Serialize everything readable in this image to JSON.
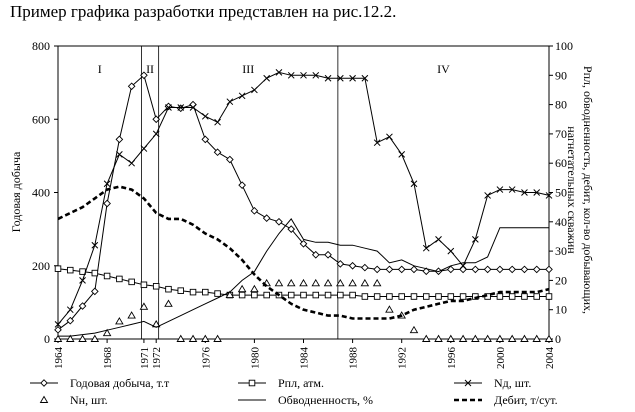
{
  "caption": "Пример графика разработки представлен на рис.12.2.",
  "chart_data": {
    "type": "line",
    "title": "",
    "ylabel_left": "Годовая добыча",
    "ylabel_right": "Рпл, обводненность, дебит, кол-во добывающих, нагнетательных скважин",
    "ylim_left": [
      0,
      800
    ],
    "ylim_right": [
      0,
      100
    ],
    "yticks_left": [
      "0",
      "200",
      "400",
      "600",
      "800"
    ],
    "yticks_right": [
      "0",
      "10",
      "20",
      "30",
      "40",
      "50",
      "60",
      "70",
      "80",
      "90",
      "100"
    ],
    "xlim": [
      1964,
      2004
    ],
    "xticks": [
      "1964",
      "1968",
      "1972",
      "1976",
      "1980",
      "1984",
      "1988",
      "1992",
      "1996",
      "2000",
      "2004"
    ],
    "extra_xticks": [
      "1971"
    ],
    "stages": [
      {
        "label": "I",
        "from": 1964,
        "to": 1970.8
      },
      {
        "label": "II",
        "from": 1970.8,
        "to": 1972.2
      },
      {
        "label": "III",
        "from": 1972.2,
        "to": 1986.8
      },
      {
        "label": "IV",
        "from": 1986.8,
        "to": 2004
      }
    ],
    "grid": false,
    "legend_position": "bottom",
    "series": [
      {
        "name": "Годовая добыча, т.т",
        "axis": "left",
        "marker": "diamond",
        "style": "solid",
        "x": [
          1964,
          1965,
          1966,
          1967,
          1968,
          1969,
          1970,
          1971,
          1972,
          1973,
          1974,
          1975,
          1976,
          1977,
          1978,
          1979,
          1980,
          1981,
          1982,
          1983,
          1984,
          1985,
          1986,
          1987,
          1988,
          1989,
          1990,
          1991,
          1992,
          1993,
          1994,
          1995,
          1996,
          1997,
          1998,
          1999,
          2000,
          2001,
          2002,
          2003,
          2004
        ],
        "y": [
          25,
          50,
          90,
          130,
          370,
          545,
          690,
          720,
          600,
          635,
          630,
          640,
          545,
          510,
          490,
          420,
          350,
          330,
          320,
          300,
          260,
          230,
          230,
          205,
          200,
          195,
          190,
          190,
          190,
          190,
          185,
          185,
          190,
          190,
          190,
          190,
          190,
          190,
          190,
          190,
          190
        ]
      },
      {
        "name": "Рпл, атм.",
        "axis": "right",
        "marker": "square",
        "style": "solid",
        "x": [
          1964,
          1965,
          1966,
          1967,
          1968,
          1969,
          1970,
          1971,
          1972,
          1973,
          1974,
          1975,
          1976,
          1977,
          1978,
          1979,
          1980,
          1981,
          1982,
          1983,
          1984,
          1985,
          1986,
          1987,
          1988,
          1989,
          1990,
          1991,
          1992,
          1993,
          1994,
          1995,
          1996,
          1997,
          1998,
          1999,
          2000,
          2001,
          2002,
          2003,
          2004
        ],
        "y": [
          24,
          23.5,
          23,
          22.5,
          21.5,
          20.5,
          19.5,
          18.5,
          18,
          17,
          16.5,
          16,
          16,
          15.5,
          15,
          15,
          15,
          15,
          15,
          15,
          15,
          15,
          15,
          15,
          15,
          14.5,
          14.5,
          14.5,
          14.5,
          14.5,
          14.5,
          14.5,
          14.5,
          14.5,
          14.5,
          14.5,
          14.5,
          14.5,
          14.5,
          14.5,
          14.5
        ]
      },
      {
        "name": "Nд, шт.",
        "axis": "right",
        "marker": "x",
        "style": "solid",
        "x": [
          1964,
          1965,
          1966,
          1967,
          1968,
          1969,
          1970,
          1971,
          1972,
          1973,
          1974,
          1975,
          1976,
          1977,
          1978,
          1979,
          1980,
          1981,
          1982,
          1983,
          1984,
          1985,
          1986,
          1987,
          1988,
          1989,
          1990,
          1991,
          1992,
          1993,
          1994,
          1995,
          1996,
          1997,
          1998,
          1999,
          2000,
          2001,
          2002,
          2003,
          2004
        ],
        "y": [
          5,
          10,
          20,
          32,
          53,
          63,
          60,
          65,
          70,
          79,
          79,
          79,
          76,
          74,
          81,
          83,
          85,
          89,
          91,
          90,
          90,
          90,
          89,
          89,
          89,
          89,
          67,
          69,
          63,
          53,
          31,
          34,
          30,
          25,
          34,
          49,
          51,
          51,
          50,
          50,
          49
        ]
      },
      {
        "name": "Nн, шт.",
        "axis": "right",
        "marker": "triangle",
        "style": "none",
        "x": [
          1964,
          1965,
          1966,
          1967,
          1968,
          1969,
          1970,
          1971,
          1972,
          1973,
          1974,
          1975,
          1976,
          1977,
          1978,
          1979,
          1980,
          1981,
          1982,
          1983,
          1984,
          1985,
          1986,
          1987,
          1988,
          1989,
          1990,
          1991,
          1992,
          1993,
          1994,
          1995,
          1996,
          1997,
          1998,
          1999,
          2000,
          2001,
          2002,
          2003,
          2004
        ],
        "y": [
          0,
          0,
          0,
          0,
          2,
          6,
          8,
          11,
          5,
          12,
          0,
          0,
          0,
          0,
          15,
          17,
          17,
          19,
          19,
          19,
          19,
          19,
          19,
          19,
          19,
          19,
          19,
          10,
          8,
          3,
          0,
          0,
          0,
          0,
          0,
          0,
          0,
          0,
          0,
          0,
          0
        ]
      },
      {
        "name": "Обводненность, %",
        "axis": "right",
        "marker": "none",
        "style": "solid",
        "x": [
          1964,
          1965,
          1966,
          1967,
          1968,
          1969,
          1970,
          1971,
          1972,
          1973,
          1974,
          1975,
          1976,
          1977,
          1978,
          1979,
          1980,
          1981,
          1982,
          1983,
          1984,
          1985,
          1986,
          1987,
          1988,
          1989,
          1990,
          1991,
          1992,
          1993,
          1994,
          1995,
          1996,
          1997,
          1998,
          1999,
          2000,
          2001,
          2002,
          2003,
          2004
        ],
        "y": [
          1,
          1,
          1.5,
          2,
          3,
          4,
          5,
          6,
          4,
          6,
          8,
          10,
          12,
          14,
          16,
          20,
          23,
          30,
          36,
          41,
          34,
          33,
          33,
          32,
          32,
          31,
          30,
          26,
          27,
          25,
          24,
          23,
          25,
          26,
          26,
          28,
          38,
          38,
          38,
          38,
          38
        ]
      },
      {
        "name": "Дебит, т/сут.",
        "axis": "right",
        "marker": "none",
        "style": "dashed",
        "x": [
          1964,
          1965,
          1966,
          1967,
          1968,
          1969,
          1970,
          1971,
          1972,
          1973,
          1974,
          1975,
          1976,
          1977,
          1978,
          1979,
          1980,
          1981,
          1982,
          1983,
          1984,
          1985,
          1986,
          1987,
          1988,
          1989,
          1990,
          1991,
          1992,
          1993,
          1994,
          1995,
          1996,
          1997,
          1998,
          1999,
          2000,
          2001,
          2002,
          2003,
          2004
        ],
        "y": [
          41,
          43,
          45,
          48,
          51,
          52,
          51,
          48,
          43,
          41,
          41,
          39,
          36,
          34,
          31,
          27,
          22,
          18,
          15,
          12,
          10,
          9,
          8,
          8,
          7,
          7,
          7,
          7,
          8,
          10,
          11,
          12,
          13,
          13,
          14,
          15,
          16,
          16,
          16,
          16,
          17
        ]
      }
    ],
    "legend": [
      {
        "label": "Годовая добыча, т.т",
        "marker": "diamond",
        "style": "solid"
      },
      {
        "label": "Рпл, атм.",
        "marker": "square",
        "style": "solid"
      },
      {
        "label": "Nд, шт.",
        "marker": "x",
        "style": "solid"
      },
      {
        "label": "Nн, шт.",
        "marker": "triangle",
        "style": "none"
      },
      {
        "label": "Обводненность, %",
        "marker": "none",
        "style": "solid"
      },
      {
        "label": "Дебит, т/сут.",
        "marker": "none",
        "style": "dashed"
      }
    ]
  }
}
